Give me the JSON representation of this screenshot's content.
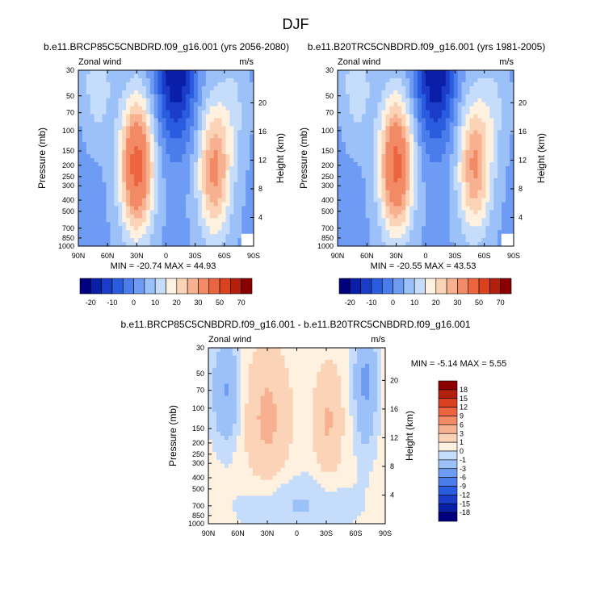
{
  "figure": {
    "title": "DJF"
  },
  "chart_data": [
    {
      "type": "heatmap",
      "title": "b.e11.BRCP85C5CNBDRD.f09_g16.001 (yrs 2056-2080)",
      "field_label": "Zonal wind",
      "units": "m/s",
      "xlabel": "",
      "ylabel": "Pressure (mb)",
      "right_label": "Height (km)",
      "x_ticks": [
        "90N",
        "60N",
        "30N",
        "0",
        "30S",
        "60S",
        "90S"
      ],
      "y_ticks": [
        "30",
        "50",
        "70",
        "100",
        "150",
        "200",
        "250",
        "300",
        "400",
        "500",
        "700",
        "850",
        "1000"
      ],
      "height_ticks": [
        "20",
        "16",
        "12",
        "8",
        "4"
      ],
      "x_range": [
        90,
        -90
      ],
      "y_range": [
        1000,
        30
      ],
      "stats": "MIN = -20.74  MAX =  44.93",
      "min": -20.74,
      "max": 44.93,
      "jets": [
        {
          "lat": 30,
          "p": 200,
          "value": 44
        },
        {
          "lat": -50,
          "p": 220,
          "value": 32
        }
      ],
      "easterlies": [
        {
          "lat": -10,
          "p": 30,
          "value": -20
        }
      ]
    },
    {
      "type": "heatmap",
      "title": "b.e11.B20TRC5CNBDRD.f09_g16.001 (yrs 1981-2005)",
      "field_label": "Zonal wind",
      "units": "m/s",
      "xlabel": "",
      "ylabel": "Pressure (mb)",
      "right_label": "Height (km)",
      "x_ticks": [
        "90N",
        "60N",
        "30N",
        "0",
        "30S",
        "60S",
        "90S"
      ],
      "y_ticks": [
        "30",
        "50",
        "70",
        "100",
        "150",
        "200",
        "250",
        "300",
        "400",
        "500",
        "700",
        "850",
        "1000"
      ],
      "height_ticks": [
        "20",
        "16",
        "12",
        "8",
        "4"
      ],
      "x_range": [
        90,
        -90
      ],
      "y_range": [
        1000,
        30
      ],
      "stats": "MIN = -20.55  MAX =  43.53",
      "min": -20.55,
      "max": 43.53,
      "jets": [
        {
          "lat": 30,
          "p": 200,
          "value": 43
        },
        {
          "lat": -50,
          "p": 200,
          "value": 31
        }
      ],
      "easterlies": [
        {
          "lat": -10,
          "p": 30,
          "value": -20
        }
      ]
    },
    {
      "type": "heatmap",
      "title": "b.e11.BRCP85C5CNBDRD.f09_g16.001 - b.e11.B20TRC5CNBDRD.f09_g16.001",
      "field_label": "Zonal wind",
      "units": "m/s",
      "xlabel": "",
      "ylabel": "Pressure (mb)",
      "right_label": "Height (km)",
      "x_ticks": [
        "90N",
        "60N",
        "30N",
        "0",
        "30S",
        "60S",
        "90S"
      ],
      "y_ticks": [
        "30",
        "50",
        "70",
        "100",
        "150",
        "200",
        "250",
        "300",
        "400",
        "500",
        "700",
        "850",
        "1000"
      ],
      "height_ticks": [
        "20",
        "16",
        "12",
        "8",
        "4"
      ],
      "x_range": [
        90,
        -90
      ],
      "y_range": [
        1000,
        30
      ],
      "stats": "MIN = -5.14  MAX =   5.55",
      "min": -5.14,
      "max": 5.55
    }
  ],
  "colorbars": {
    "top": {
      "tick_labels": [
        "-20",
        "-10",
        "0",
        "10",
        "20",
        "30",
        "50",
        "70"
      ],
      "colors": [
        "#00007f",
        "#0a1fa8",
        "#1a3cc8",
        "#2a5ce0",
        "#4a7cec",
        "#6e9cf4",
        "#9cc0f8",
        "#c6dcfb",
        "#fff1e0",
        "#fbd3b7",
        "#f7b090",
        "#f28a66",
        "#ec6540",
        "#d9411f",
        "#b31f0d",
        "#8a0000"
      ]
    },
    "diff": {
      "labels": [
        "18",
        "15",
        "12",
        "9",
        "6",
        "3",
        "1",
        "0",
        "-1",
        "-3",
        "-6",
        "-9",
        "-12",
        "-15",
        "-18"
      ],
      "colors": [
        "#8a0000",
        "#b31f0d",
        "#d9411f",
        "#ec6540",
        "#f28a66",
        "#f7b090",
        "#fbd3b7",
        "#fff1e0",
        "#c6dcfb",
        "#9cc0f8",
        "#6e9cf4",
        "#4a7cec",
        "#2a5ce0",
        "#1a3cc8",
        "#0a1fa8",
        "#00007f"
      ]
    }
  }
}
